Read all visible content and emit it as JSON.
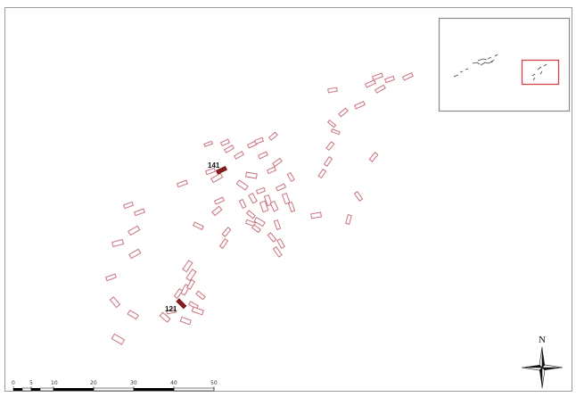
{
  "map": {
    "highlighted_plots": [
      {
        "label": "141",
        "color": "#8e1b24"
      },
      {
        "label": "121",
        "color": "#8e1b24"
      }
    ],
    "plot_outline_color": "#c9747f",
    "inset_extent_color": "#d2434f"
  },
  "scale_bar": {
    "ticks": [
      "0",
      "5",
      "10",
      "20",
      "30",
      "40",
      "50"
    ]
  },
  "north_arrow": {
    "label": "N"
  }
}
